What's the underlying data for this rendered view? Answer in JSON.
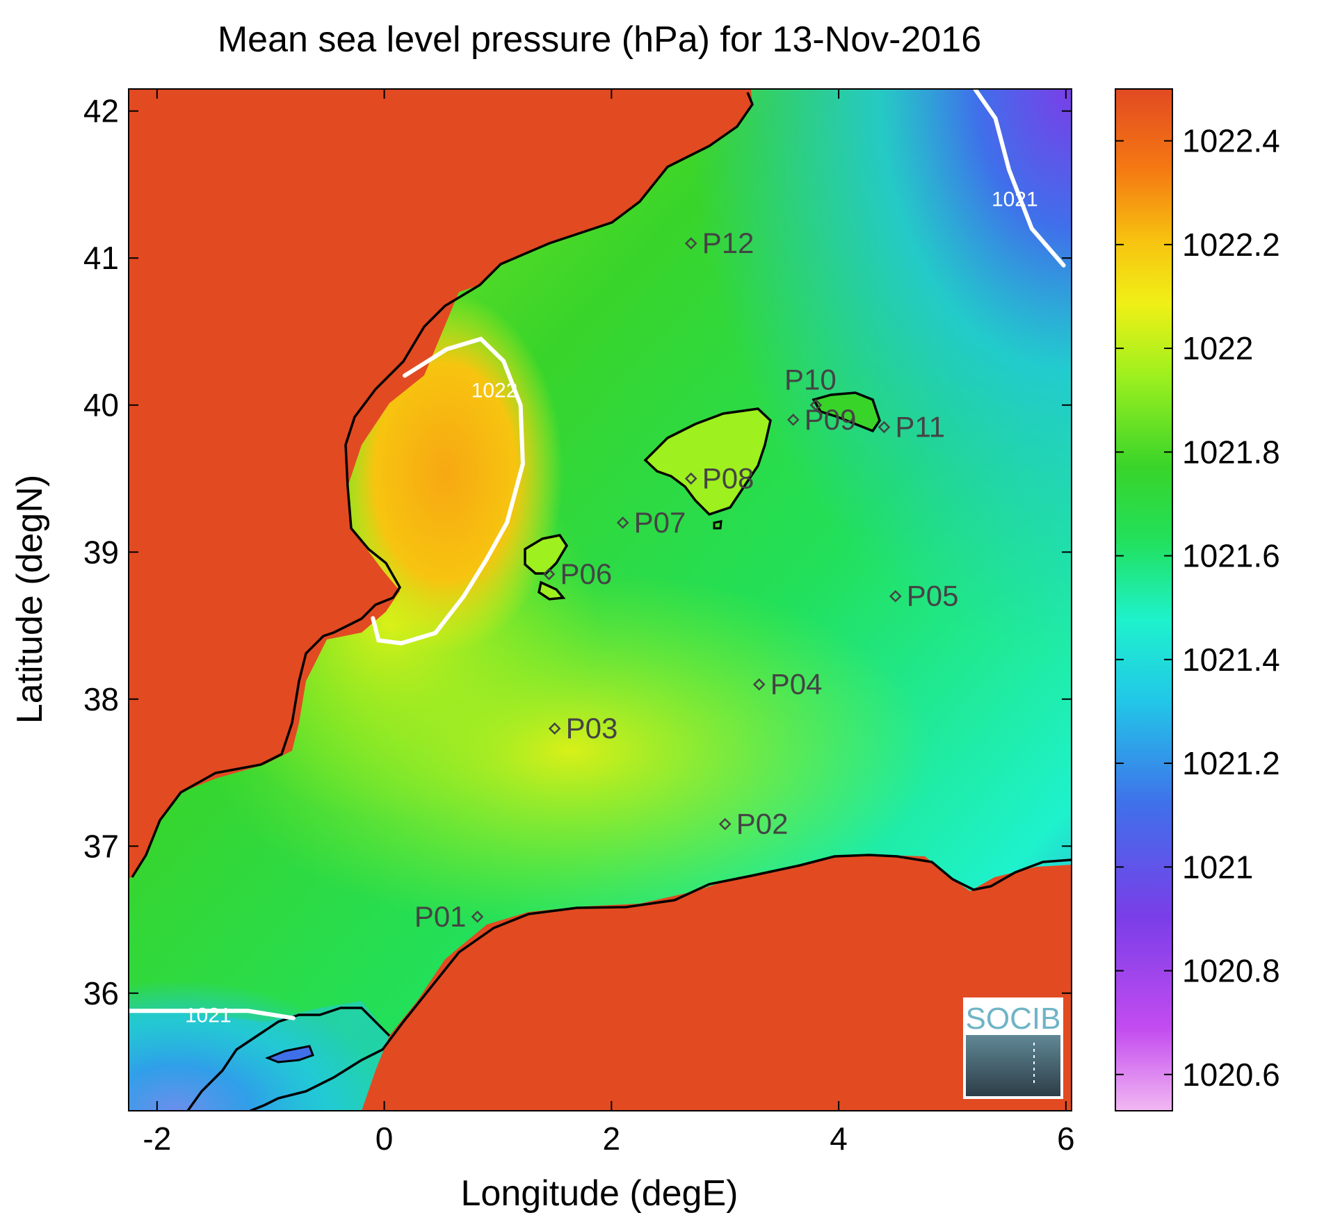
{
  "title": "Mean sea level pressure (hPa) for 13-Nov-2016",
  "xlabel": "Longitude (degE)",
  "ylabel": "Latitude (degN)",
  "xlim": [
    -2.25,
    6.05
  ],
  "ylim": [
    35.2,
    42.15
  ],
  "xticks": [
    -2,
    0,
    2,
    4,
    6
  ],
  "xtick_labels": [
    "-2",
    "0",
    "2",
    "4",
    "6"
  ],
  "yticks": [
    36,
    37,
    38,
    39,
    40,
    41,
    42
  ],
  "ytick_labels": [
    "36",
    "37",
    "38",
    "39",
    "40",
    "41",
    "42"
  ],
  "colorbar": {
    "range": [
      1020.53,
      1022.5
    ],
    "ticks": [
      1020.6,
      1020.8,
      1021,
      1021.2,
      1021.4,
      1021.6,
      1021.8,
      1022,
      1022.2,
      1022.4
    ],
    "tick_labels": [
      "1020.6",
      "1020.8",
      "1021",
      "1021.2",
      "1021.4",
      "1021.6",
      "1021.8",
      "1022",
      "1022.2",
      "1022.4"
    ],
    "colormap": [
      "#f2b8f2",
      "#c34cf0",
      "#7a3ee8",
      "#3f70ea",
      "#22c6e8",
      "#1ef2cc",
      "#22e05a",
      "#39d42a",
      "#9ef01e",
      "#f0f016",
      "#f7c410",
      "#f57a12",
      "#e24a22"
    ]
  },
  "colors": {
    "land": "#e24a22",
    "coastline": "#000000",
    "contour": "#ffffff",
    "station": "#444444"
  },
  "contours": [
    {
      "label": "1022",
      "level": 1022,
      "label_at": [
        0.97,
        40.1
      ],
      "points": [
        [
          0.18,
          40.2
        ],
        [
          0.55,
          40.38
        ],
        [
          0.85,
          40.45
        ],
        [
          1.05,
          40.3
        ],
        [
          1.2,
          40.0
        ],
        [
          1.22,
          39.6
        ],
        [
          1.08,
          39.2
        ],
        [
          0.9,
          38.95
        ],
        [
          0.7,
          38.7
        ],
        [
          0.45,
          38.45
        ],
        [
          0.15,
          38.38
        ],
        [
          -0.05,
          38.4
        ],
        [
          -0.1,
          38.55
        ]
      ]
    },
    {
      "label": "1021",
      "level": 1021,
      "label_at": [
        5.55,
        41.4
      ],
      "points": [
        [
          5.2,
          42.15
        ],
        [
          5.38,
          41.95
        ],
        [
          5.5,
          41.6
        ],
        [
          5.7,
          41.2
        ],
        [
          5.98,
          40.95
        ]
      ]
    },
    {
      "label": "1021",
      "level": 1021,
      "label_at": [
        -1.55,
        35.85
      ],
      "points": [
        [
          -2.25,
          35.88
        ],
        [
          -1.85,
          35.88
        ],
        [
          -1.2,
          35.88
        ],
        [
          -0.8,
          35.83
        ]
      ]
    }
  ],
  "stations": [
    {
      "id": "P01",
      "lon": 0.82,
      "lat": 36.52
    },
    {
      "id": "P02",
      "lon": 3.0,
      "lat": 37.15
    },
    {
      "id": "P03",
      "lon": 1.5,
      "lat": 37.8
    },
    {
      "id": "P04",
      "lon": 3.3,
      "lat": 38.1
    },
    {
      "id": "P05",
      "lon": 4.5,
      "lat": 38.7
    },
    {
      "id": "P06",
      "lon": 1.45,
      "lat": 38.85
    },
    {
      "id": "P07",
      "lon": 2.1,
      "lat": 39.2
    },
    {
      "id": "P08",
      "lon": 2.7,
      "lat": 39.5
    },
    {
      "id": "P09",
      "lon": 3.6,
      "lat": 39.9
    },
    {
      "id": "P10",
      "lon": 3.8,
      "lat": 40.0
    },
    {
      "id": "P11",
      "lon": 4.4,
      "lat": 39.85
    },
    {
      "id": "P12",
      "lon": 2.7,
      "lat": 41.1
    }
  ],
  "logo": {
    "text": "SOCIB",
    "icon": "socib-logo"
  }
}
